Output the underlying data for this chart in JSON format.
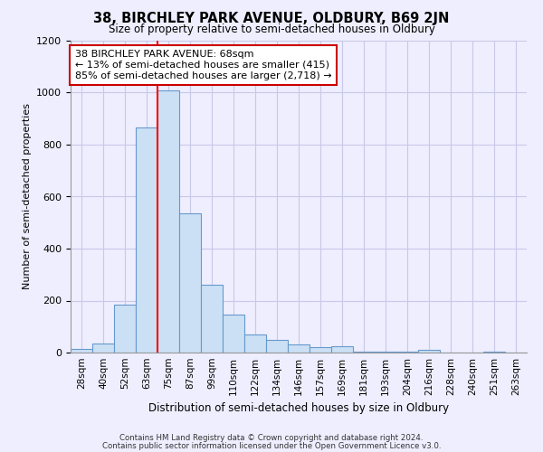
{
  "title": "38, BIRCHLEY PARK AVENUE, OLDBURY, B69 2JN",
  "subtitle": "Size of property relative to semi-detached houses in Oldbury",
  "xlabel": "Distribution of semi-detached houses by size in Oldbury",
  "ylabel": "Number of semi-detached properties",
  "footnote1": "Contains HM Land Registry data © Crown copyright and database right 2024.",
  "footnote2": "Contains public sector information licensed under the Open Government Licence v3.0.",
  "bin_labels": [
    "28sqm",
    "40sqm",
    "52sqm",
    "63sqm",
    "75sqm",
    "87sqm",
    "99sqm",
    "110sqm",
    "122sqm",
    "134sqm",
    "146sqm",
    "157sqm",
    "169sqm",
    "181sqm",
    "193sqm",
    "204sqm",
    "216sqm",
    "228sqm",
    "240sqm",
    "251sqm",
    "263sqm"
  ],
  "bar_values": [
    15,
    35,
    185,
    865,
    1010,
    535,
    260,
    145,
    70,
    50,
    30,
    20,
    25,
    5,
    5,
    5,
    10,
    0,
    0,
    5,
    0
  ],
  "bar_color": "#cce0f5",
  "bar_edge_color": "#6699cc",
  "grid_color": "#c8c8e8",
  "background_color": "#eeeeff",
  "red_line_bin": 4,
  "annotation_text": "38 BIRCHLEY PARK AVENUE: 68sqm\n← 13% of semi-detached houses are smaller (415)\n85% of semi-detached houses are larger (2,718) →",
  "annotation_box_color": "#ffffff",
  "annotation_box_edge": "#cc0000",
  "ylim": [
    0,
    1200
  ],
  "yticks": [
    0,
    200,
    400,
    600,
    800,
    1000,
    1200
  ]
}
